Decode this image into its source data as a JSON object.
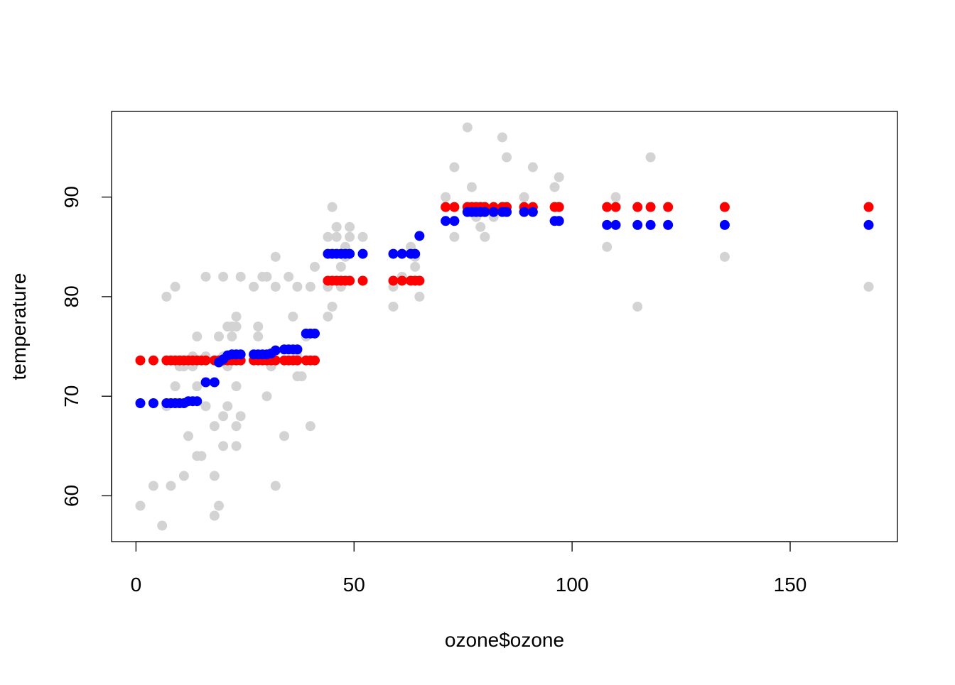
{
  "chart_data": {
    "type": "scatter",
    "title": "",
    "xlabel": "ozone$ozone",
    "ylabel": "temperature",
    "xlim": [
      -5.6,
      174.6
    ],
    "ylim": [
      55.4,
      98.6
    ],
    "x_ticks": [
      0,
      50,
      100,
      150
    ],
    "y_ticks": [
      60,
      70,
      80,
      90
    ],
    "grid": false,
    "legend": "none",
    "series": [
      {
        "color": "#D3D3D3",
        "x": [
          1,
          4,
          6,
          7,
          7,
          8,
          9,
          9,
          10,
          11,
          11,
          12,
          13,
          13,
          14,
          14,
          14,
          15,
          16,
          16,
          16,
          18,
          18,
          18,
          19,
          19,
          20,
          20,
          20,
          20,
          21,
          21,
          21,
          22,
          22,
          23,
          23,
          23,
          23,
          23,
          24,
          24,
          27,
          28,
          28,
          29,
          30,
          30,
          31,
          32,
          32,
          32,
          34,
          35,
          36,
          37,
          37,
          37,
          37,
          38,
          39,
          40,
          40,
          41,
          44,
          44,
          44,
          45,
          45,
          46,
          46,
          47,
          47,
          48,
          48,
          49,
          49,
          52,
          59,
          59,
          61,
          63,
          64,
          64,
          65,
          71,
          71,
          73,
          73,
          76,
          77,
          78,
          79,
          80,
          82,
          84,
          85,
          89,
          91,
          96,
          97,
          108,
          110,
          115,
          118,
          135,
          168
        ],
        "y": [
          59,
          61,
          57,
          80,
          69,
          61,
          81,
          71,
          73,
          73,
          62,
          66,
          74,
          73,
          64,
          71,
          76,
          64,
          82,
          69,
          74,
          67,
          62,
          58,
          76,
          59,
          68,
          65,
          74,
          82,
          77,
          73,
          69,
          77,
          76,
          78,
          65,
          71,
          67,
          77,
          82,
          68,
          81,
          77,
          76,
          82,
          82,
          70,
          73,
          61,
          81,
          84,
          66,
          82,
          78,
          72,
          81,
          74,
          74,
          72,
          76,
          67,
          81,
          83,
          86,
          81,
          78,
          89,
          79,
          87,
          86,
          83,
          81,
          85,
          84,
          86,
          87,
          86,
          81,
          79,
          82,
          85,
          83,
          84,
          80,
          90,
          89,
          86,
          93,
          97,
          91,
          88,
          87,
          86,
          88,
          96,
          94,
          90,
          93,
          91,
          92,
          85,
          90,
          79,
          94,
          84,
          81
        ]
      },
      {
        "color": "#FF0000",
        "x": [
          1,
          4,
          7,
          8,
          9,
          10,
          11,
          12,
          13,
          14,
          15,
          16,
          18,
          19,
          20,
          21,
          22,
          23,
          24,
          27,
          28,
          29,
          30,
          31,
          32,
          34,
          35,
          36,
          37,
          39,
          40,
          41,
          44,
          45,
          46,
          47,
          48,
          49,
          52,
          59,
          61,
          63,
          64,
          65,
          71,
          73,
          76,
          77,
          78,
          79,
          80,
          82,
          84,
          85,
          89,
          91,
          96,
          97,
          108,
          110,
          115,
          118,
          122,
          135,
          168
        ],
        "y": [
          73.6,
          73.6,
          73.6,
          73.6,
          73.6,
          73.6,
          73.6,
          73.6,
          73.6,
          73.6,
          73.6,
          73.6,
          73.6,
          73.6,
          73.6,
          73.6,
          73.6,
          73.6,
          73.6,
          73.6,
          73.6,
          73.6,
          73.6,
          73.6,
          73.6,
          73.6,
          73.6,
          73.6,
          73.6,
          73.6,
          73.6,
          73.6,
          81.6,
          81.6,
          81.6,
          81.6,
          81.6,
          81.6,
          81.6,
          81.6,
          81.6,
          81.6,
          81.6,
          81.6,
          89,
          89,
          89,
          89,
          89,
          89,
          89,
          89,
          89,
          89,
          89,
          89,
          89,
          89,
          89,
          89,
          89,
          89,
          89,
          89,
          89
        ]
      },
      {
        "color": "#0000FF",
        "x": [
          1,
          4,
          7,
          8,
          9,
          10,
          11,
          12,
          13,
          14,
          16,
          18,
          19,
          20,
          21,
          22,
          23,
          24,
          27,
          28,
          29,
          30,
          31,
          32,
          34,
          35,
          36,
          37,
          39,
          40,
          41,
          44,
          45,
          46,
          47,
          48,
          49,
          52,
          59,
          61,
          63,
          64,
          65,
          71,
          73,
          76,
          77,
          78,
          79,
          80,
          82,
          84,
          85,
          89,
          91,
          96,
          97,
          108,
          110,
          115,
          118,
          122,
          135,
          168
        ],
        "y": [
          69.3,
          69.3,
          69.3,
          69.3,
          69.3,
          69.3,
          69.3,
          69.5,
          69.5,
          69.5,
          71.4,
          71.4,
          73.4,
          73.7,
          74.1,
          74.2,
          74.2,
          74.2,
          74.2,
          74.2,
          74.2,
          74.2,
          74.3,
          74.6,
          74.7,
          74.7,
          74.7,
          74.7,
          76.3,
          76.3,
          76.3,
          84.3,
          84.3,
          84.3,
          84.3,
          84.3,
          84.3,
          84.3,
          84.3,
          84.3,
          84.3,
          84.3,
          86.1,
          87.6,
          87.6,
          88.5,
          88.5,
          88.5,
          88.5,
          88.5,
          88.5,
          88.5,
          88.5,
          88.5,
          88.5,
          87.6,
          87.6,
          87.2,
          87.2,
          87.2,
          87.2,
          87.2,
          87.2,
          87.2
        ]
      }
    ]
  }
}
